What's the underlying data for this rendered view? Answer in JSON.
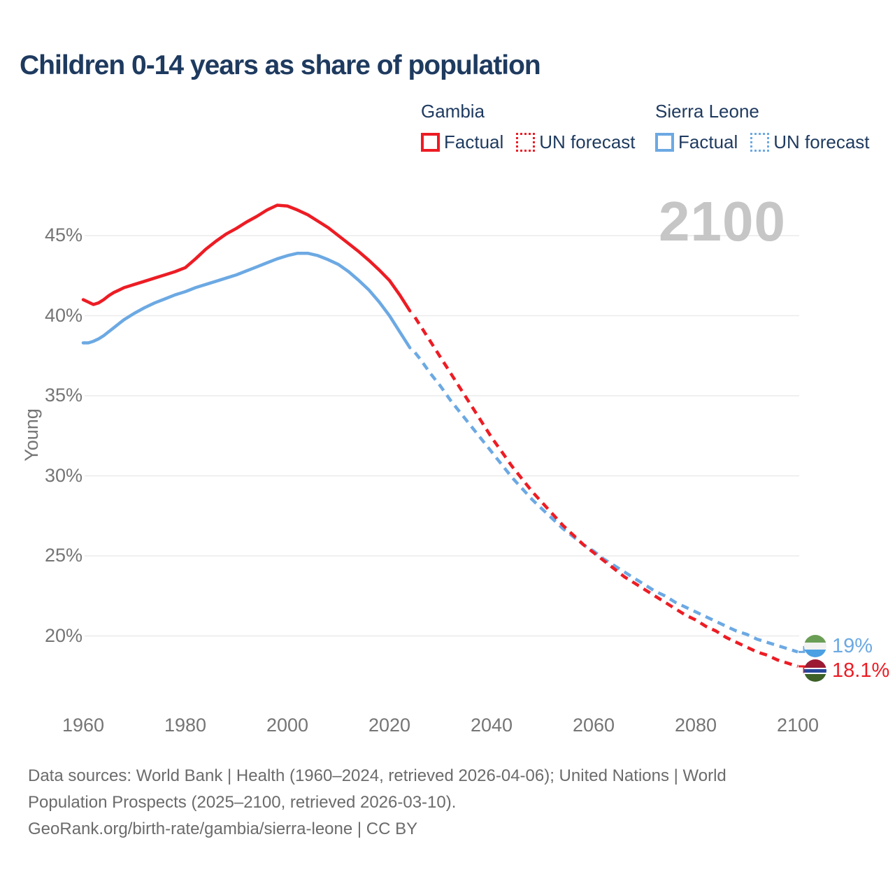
{
  "title": "Children 0-14 years as share of population",
  "watermark_year": "2100",
  "legend": {
    "groups": [
      {
        "name": "Gambia",
        "color": "#ed1c24",
        "items": [
          {
            "label": "Factual",
            "style": "solid"
          },
          {
            "label": "UN forecast",
            "style": "dotted"
          }
        ]
      },
      {
        "name": "Sierra Leone",
        "color": "#6ca9e3",
        "items": [
          {
            "label": "Factual",
            "style": "solid"
          },
          {
            "label": "UN forecast",
            "style": "dotted"
          }
        ]
      }
    ]
  },
  "end_labels": [
    {
      "country": "Sierra Leone",
      "value_label": "19%",
      "color": "#6ca9e3",
      "elbow": "up",
      "flag_stripes": [
        [
          "#6b9e55",
          0,
          34
        ],
        [
          "#f2f3f1",
          34,
          66
        ],
        [
          "#4ba0e3",
          66,
          100
        ]
      ]
    },
    {
      "country": "Gambia",
      "value_label": "18.1%",
      "color": "#ed1c24",
      "elbow": "down",
      "flag_stripes": [
        [
          "#9c1b33",
          0,
          38
        ],
        [
          "#ffffff",
          38,
          44
        ],
        [
          "#27499c",
          44,
          60
        ],
        [
          "#ffffff",
          60,
          66
        ],
        [
          "#3d6127",
          66,
          100
        ]
      ]
    }
  ],
  "footer": {
    "lines": [
      "Data sources: World Bank | Health (1960–2024, retrieved 2026-04-06); United Nations | World",
      "Population Prospects (2025–2100, retrieved 2026-03-10).",
      "GeoRank.org/birth-rate/gambia/sierra-leone | CC BY"
    ]
  },
  "chart_data": {
    "type": "line",
    "title": "Children 0-14 years as share of population",
    "xlabel": "",
    "ylabel": "Young",
    "x_ticks": [
      1960,
      1980,
      2000,
      2020,
      2040,
      2060,
      2080,
      2100
    ],
    "y_ticks": [
      45,
      40,
      35,
      30,
      25,
      20
    ],
    "y_tick_suffix": "%",
    "xlim": [
      1958,
      2114
    ],
    "ylim": [
      16,
      48.5
    ],
    "grid": "horizontal",
    "legend_position": "top-right",
    "series": [
      {
        "name": "Sierra Leone Factual",
        "color": "#6ca9e3",
        "style": "solid",
        "points": [
          [
            1960,
            38.3
          ],
          [
            1961,
            38.3
          ],
          [
            1962,
            38.4
          ],
          [
            1963,
            38.55
          ],
          [
            1964,
            38.75
          ],
          [
            1965,
            39.0
          ],
          [
            1966,
            39.25
          ],
          [
            1967,
            39.5
          ],
          [
            1968,
            39.75
          ],
          [
            1970,
            40.15
          ],
          [
            1972,
            40.5
          ],
          [
            1974,
            40.8
          ],
          [
            1976,
            41.05
          ],
          [
            1978,
            41.3
          ],
          [
            1980,
            41.5
          ],
          [
            1982,
            41.75
          ],
          [
            1984,
            41.95
          ],
          [
            1986,
            42.15
          ],
          [
            1988,
            42.35
          ],
          [
            1990,
            42.55
          ],
          [
            1992,
            42.8
          ],
          [
            1994,
            43.05
          ],
          [
            1996,
            43.3
          ],
          [
            1998,
            43.55
          ],
          [
            2000,
            43.75
          ],
          [
            2002,
            43.9
          ],
          [
            2004,
            43.9
          ],
          [
            2006,
            43.75
          ],
          [
            2008,
            43.5
          ],
          [
            2010,
            43.2
          ],
          [
            2012,
            42.75
          ],
          [
            2014,
            42.2
          ],
          [
            2016,
            41.6
          ],
          [
            2018,
            40.85
          ],
          [
            2020,
            40.0
          ],
          [
            2022,
            39.0
          ],
          [
            2024,
            38.0
          ]
        ]
      },
      {
        "name": "Sierra Leone UN forecast",
        "color": "#6ca9e3",
        "style": "dashed",
        "points": [
          [
            2025,
            37.7
          ],
          [
            2026,
            37.3
          ],
          [
            2028,
            36.4
          ],
          [
            2030,
            35.6
          ],
          [
            2032,
            34.7
          ],
          [
            2034,
            33.9
          ],
          [
            2036,
            33.1
          ],
          [
            2038,
            32.3
          ],
          [
            2040,
            31.5
          ],
          [
            2042,
            30.7
          ],
          [
            2044,
            29.9
          ],
          [
            2046,
            29.2
          ],
          [
            2048,
            28.5
          ],
          [
            2050,
            27.9
          ],
          [
            2052,
            27.3
          ],
          [
            2054,
            26.7
          ],
          [
            2056,
            26.2
          ],
          [
            2058,
            25.7
          ],
          [
            2060,
            25.3
          ],
          [
            2062,
            24.8
          ],
          [
            2064,
            24.4
          ],
          [
            2066,
            24.0
          ],
          [
            2068,
            23.6
          ],
          [
            2070,
            23.2
          ],
          [
            2072,
            22.8
          ],
          [
            2074,
            22.5
          ],
          [
            2076,
            22.1
          ],
          [
            2078,
            21.8
          ],
          [
            2080,
            21.5
          ],
          [
            2082,
            21.2
          ],
          [
            2084,
            20.9
          ],
          [
            2086,
            20.6
          ],
          [
            2088,
            20.3
          ],
          [
            2090,
            20.1
          ],
          [
            2092,
            19.8
          ],
          [
            2094,
            19.6
          ],
          [
            2096,
            19.4
          ],
          [
            2098,
            19.2
          ],
          [
            2100,
            19.0
          ]
        ]
      },
      {
        "name": "Gambia Factual",
        "color": "#ed1c24",
        "style": "solid",
        "points": [
          [
            1960,
            41.0
          ],
          [
            1961,
            40.85
          ],
          [
            1962,
            40.7
          ],
          [
            1963,
            40.8
          ],
          [
            1964,
            41.0
          ],
          [
            1965,
            41.25
          ],
          [
            1966,
            41.45
          ],
          [
            1967,
            41.6
          ],
          [
            1968,
            41.75
          ],
          [
            1969,
            41.85
          ],
          [
            1970,
            41.95
          ],
          [
            1972,
            42.15
          ],
          [
            1974,
            42.35
          ],
          [
            1976,
            42.55
          ],
          [
            1978,
            42.75
          ],
          [
            1980,
            43.0
          ],
          [
            1982,
            43.55
          ],
          [
            1984,
            44.15
          ],
          [
            1986,
            44.65
          ],
          [
            1988,
            45.1
          ],
          [
            1990,
            45.45
          ],
          [
            1992,
            45.85
          ],
          [
            1994,
            46.2
          ],
          [
            1996,
            46.6
          ],
          [
            1998,
            46.9
          ],
          [
            2000,
            46.85
          ],
          [
            2002,
            46.6
          ],
          [
            2004,
            46.3
          ],
          [
            2006,
            45.9
          ],
          [
            2008,
            45.5
          ],
          [
            2010,
            45.0
          ],
          [
            2012,
            44.5
          ],
          [
            2014,
            44.0
          ],
          [
            2016,
            43.45
          ],
          [
            2018,
            42.85
          ],
          [
            2020,
            42.2
          ],
          [
            2022,
            41.3
          ],
          [
            2024,
            40.3
          ]
        ]
      },
      {
        "name": "Gambia UN forecast",
        "color": "#ed1c24",
        "style": "dashed",
        "points": [
          [
            2025,
            39.9
          ],
          [
            2026,
            39.4
          ],
          [
            2028,
            38.4
          ],
          [
            2030,
            37.4
          ],
          [
            2032,
            36.4
          ],
          [
            2034,
            35.4
          ],
          [
            2036,
            34.4
          ],
          [
            2038,
            33.4
          ],
          [
            2040,
            32.4
          ],
          [
            2042,
            31.5
          ],
          [
            2044,
            30.6
          ],
          [
            2046,
            29.8
          ],
          [
            2048,
            29.0
          ],
          [
            2050,
            28.3
          ],
          [
            2052,
            27.6
          ],
          [
            2054,
            26.9
          ],
          [
            2056,
            26.3
          ],
          [
            2058,
            25.7
          ],
          [
            2060,
            25.2
          ],
          [
            2062,
            24.7
          ],
          [
            2064,
            24.2
          ],
          [
            2066,
            23.7
          ],
          [
            2068,
            23.3
          ],
          [
            2070,
            22.9
          ],
          [
            2072,
            22.5
          ],
          [
            2074,
            22.1
          ],
          [
            2076,
            21.7
          ],
          [
            2078,
            21.3
          ],
          [
            2080,
            21.0
          ],
          [
            2082,
            20.6
          ],
          [
            2084,
            20.3
          ],
          [
            2086,
            19.9
          ],
          [
            2088,
            19.6
          ],
          [
            2090,
            19.3
          ],
          [
            2092,
            19.0
          ],
          [
            2094,
            18.8
          ],
          [
            2096,
            18.5
          ],
          [
            2098,
            18.3
          ],
          [
            2100,
            18.1
          ]
        ]
      }
    ]
  }
}
